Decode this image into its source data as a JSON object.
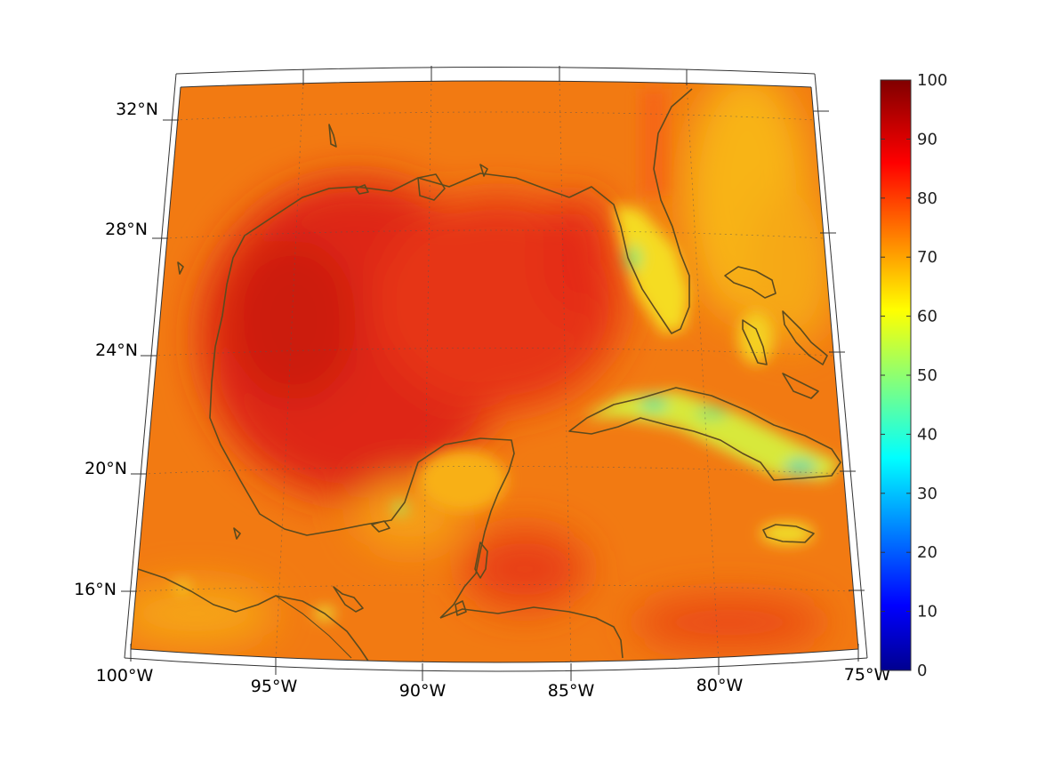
{
  "map": {
    "projection": "conic",
    "lon_range": [
      -100,
      -75
    ],
    "lat_range": [
      14,
      33
    ],
    "lon_ticks": [
      {
        "value": -100,
        "label": "100°W"
      },
      {
        "value": -95,
        "label": "95°W"
      },
      {
        "value": -90,
        "label": "90°W"
      },
      {
        "value": -85,
        "label": "85°W"
      },
      {
        "value": -80,
        "label": "80°W"
      },
      {
        "value": -75,
        "label": "75°W"
      }
    ],
    "lat_ticks": [
      {
        "value": 32,
        "label": "32°N"
      },
      {
        "value": 28,
        "label": "28°N"
      },
      {
        "value": 24,
        "label": "24°N"
      },
      {
        "value": 20,
        "label": "20°N"
      },
      {
        "value": 16,
        "label": "16°N"
      }
    ],
    "grid": true,
    "coastline_color": "#5c4a1e"
  },
  "colorbar": {
    "min": 0,
    "max": 100,
    "colormap": "jet",
    "ticks": [
      "0",
      "10",
      "20",
      "30",
      "40",
      "50",
      "60",
      "70",
      "80",
      "90",
      "100"
    ]
  }
}
